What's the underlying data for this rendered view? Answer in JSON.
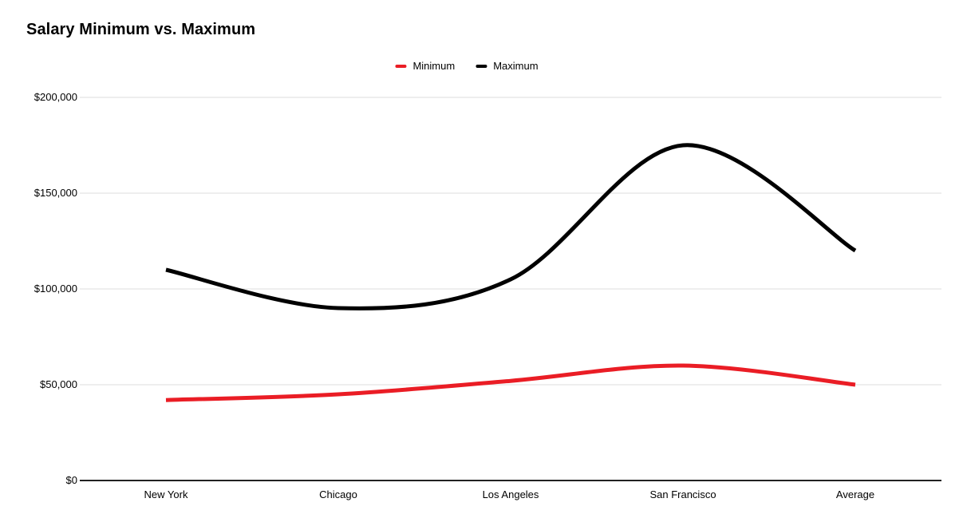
{
  "page": {
    "background_color": "#ffffff"
  },
  "chart_data": {
    "type": "line",
    "title": "Salary Minimum vs. Maximum",
    "categories": [
      "New York",
      "Chicago",
      "Los Angeles",
      "San Francisco",
      "Average"
    ],
    "series": [
      {
        "name": "Minimum",
        "color": "#ea1d25",
        "values": [
          42000,
          45000,
          52000,
          60000,
          50000
        ]
      },
      {
        "name": "Maximum",
        "color": "#000000",
        "values": [
          110000,
          90000,
          105000,
          175000,
          120000
        ]
      }
    ],
    "xlabel": "",
    "ylabel": "",
    "ylim": [
      0,
      200000
    ],
    "y_ticks": [
      {
        "value": 0,
        "label": "$0"
      },
      {
        "value": 50000,
        "label": "$50,000"
      },
      {
        "value": 100000,
        "label": "$100,000"
      },
      {
        "value": 150000,
        "label": "$150,000"
      },
      {
        "value": 200000,
        "label": "$200,000"
      }
    ],
    "legend_position": "top",
    "grid": true,
    "line_style": "smooth",
    "gridline_color": "#dcdcdc",
    "axis_line_color": "#212121"
  }
}
